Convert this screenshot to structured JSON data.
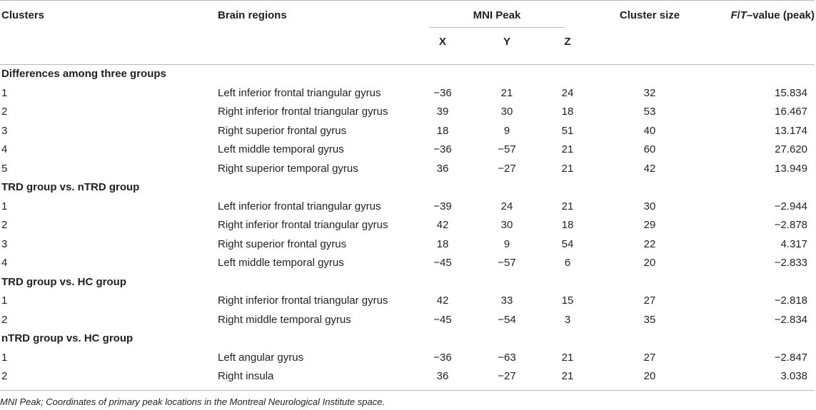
{
  "headers": {
    "clusters": "Clusters",
    "regions": "Brain regions",
    "mni": "MNI Peak",
    "x": "X",
    "y": "Y",
    "z": "Z",
    "size": "Cluster size",
    "fval_f": "F",
    "fval_slash": "/",
    "fval_t": "T",
    "fval_rest": "–value (peak)"
  },
  "sections": [
    {
      "title": "Differences among three groups",
      "rows": [
        {
          "cluster": "1",
          "region": "Left inferior frontal triangular gyrus",
          "x": "−36",
          "y": "21",
          "z": "24",
          "size": "32",
          "value": "15.834"
        },
        {
          "cluster": "2",
          "region": "Right inferior frontal triangular gyrus",
          "x": "39",
          "y": "30",
          "z": "18",
          "size": "53",
          "value": "16.467"
        },
        {
          "cluster": "3",
          "region": "Right superior frontal gyrus",
          "x": "18",
          "y": "9",
          "z": "51",
          "size": "40",
          "value": "13.174"
        },
        {
          "cluster": "4",
          "region": "Left middle temporal gyrus",
          "x": "−36",
          "y": "−57",
          "z": "21",
          "size": "60",
          "value": "27.620"
        },
        {
          "cluster": "5",
          "region": "Right superior temporal gyrus",
          "x": "36",
          "y": "−27",
          "z": "21",
          "size": "42",
          "value": "13.949"
        }
      ]
    },
    {
      "title": "TRD group vs. nTRD group",
      "rows": [
        {
          "cluster": "1",
          "region": "Left inferior frontal triangular gyrus",
          "x": "−39",
          "y": "24",
          "z": "21",
          "size": "30",
          "value": "−2.944"
        },
        {
          "cluster": "2",
          "region": "Right inferior frontal triangular gyrus",
          "x": "42",
          "y": "30",
          "z": "18",
          "size": "29",
          "value": "−2.878"
        },
        {
          "cluster": "3",
          "region": "Right superior frontal gyrus",
          "x": "18",
          "y": "9",
          "z": "54",
          "size": "22",
          "value": "4.317"
        },
        {
          "cluster": "4",
          "region": "Left middle temporal gyrus",
          "x": "−45",
          "y": "−57",
          "z": "6",
          "size": "20",
          "value": "−2.833"
        }
      ]
    },
    {
      "title": "TRD group vs. HC group",
      "rows": [
        {
          "cluster": "1",
          "region": "Right inferior frontal triangular gyrus",
          "x": "42",
          "y": "33",
          "z": "15",
          "size": "27",
          "value": "−2.818"
        },
        {
          "cluster": "2",
          "region": "Right middle temporal gyrus",
          "x": "−45",
          "y": "−54",
          "z": "3",
          "size": "35",
          "value": "−2.834"
        }
      ]
    },
    {
      "title": "nTRD group vs. HC group",
      "rows": [
        {
          "cluster": "1",
          "region": "Left angular gyrus",
          "x": "−36",
          "y": "−63",
          "z": "21",
          "size": "27",
          "value": "−2.847"
        },
        {
          "cluster": "2",
          "region": "Right insula",
          "x": "36",
          "y": "−27",
          "z": "21",
          "size": "20",
          "value": "3.038"
        }
      ]
    }
  ],
  "footnote": "MNI Peak; Coordinates of primary peak locations in the Montreal Neurological Institute space."
}
